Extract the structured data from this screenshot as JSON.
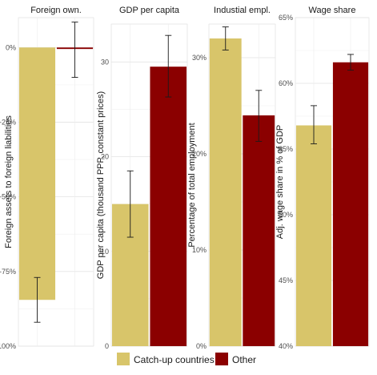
{
  "legend": {
    "items": [
      {
        "label": "Catch-up countries",
        "color": "#d8c56a"
      },
      {
        "label": "Other",
        "color": "#8b0000"
      }
    ]
  },
  "chart_data": [
    {
      "type": "bar",
      "title": "Foreign own.",
      "ylabel": "Foreign assets to foreign liabilities",
      "ylim": [
        -100,
        10
      ],
      "yticks": [
        0,
        -25,
        -50,
        -75,
        -100
      ],
      "ytick_labels": [
        "0%",
        "-25%",
        "-50%",
        "-75%",
        "-100%"
      ],
      "categories": [
        "Catch-up countries",
        "Other"
      ],
      "values": [
        -84.5,
        -0.5
      ],
      "error_low": [
        -92,
        -10
      ],
      "error_high": [
        -77,
        8.5
      ],
      "grid": true
    },
    {
      "type": "bar",
      "title": "GDP per capita",
      "ylabel": "GDP per capita (thousand PPP, constant prices)",
      "ylim": [
        0,
        34
      ],
      "yticks": [
        0,
        10,
        20,
        30
      ],
      "ytick_labels": [
        "0",
        "10",
        "20",
        "30"
      ],
      "categories": [
        "Catch-up countries",
        "Other"
      ],
      "values": [
        15,
        29.5
      ],
      "error_low": [
        11.5,
        26.3
      ],
      "error_high": [
        18.5,
        32.8
      ],
      "grid": true
    },
    {
      "type": "bar",
      "title": "Industial empl.",
      "ylabel": "Percentage of total employment",
      "ylim": [
        0,
        33.5
      ],
      "yticks": [
        0,
        10,
        20,
        30
      ],
      "ytick_labels": [
        "0%",
        "10%",
        "20%",
        "30%"
      ],
      "categories": [
        "Catch-up countries",
        "Other"
      ],
      "values": [
        32,
        24
      ],
      "error_low": [
        30.8,
        21.3
      ],
      "error_high": [
        33.2,
        26.6
      ],
      "grid": true
    },
    {
      "type": "bar",
      "title": "Wage share",
      "ylabel": "Adj. wage share in % of GDP",
      "ylim": [
        40,
        65
      ],
      "yticks": [
        40,
        45,
        50,
        55,
        60,
        65
      ],
      "ytick_labels": [
        "40%",
        "45%",
        "50%",
        "55%",
        "60%",
        "65%"
      ],
      "categories": [
        "Catch-up countries",
        "Other"
      ],
      "values": [
        56.8,
        61.6
      ],
      "error_low": [
        55.4,
        61
      ],
      "error_high": [
        58.3,
        62.2
      ],
      "grid": true
    }
  ]
}
